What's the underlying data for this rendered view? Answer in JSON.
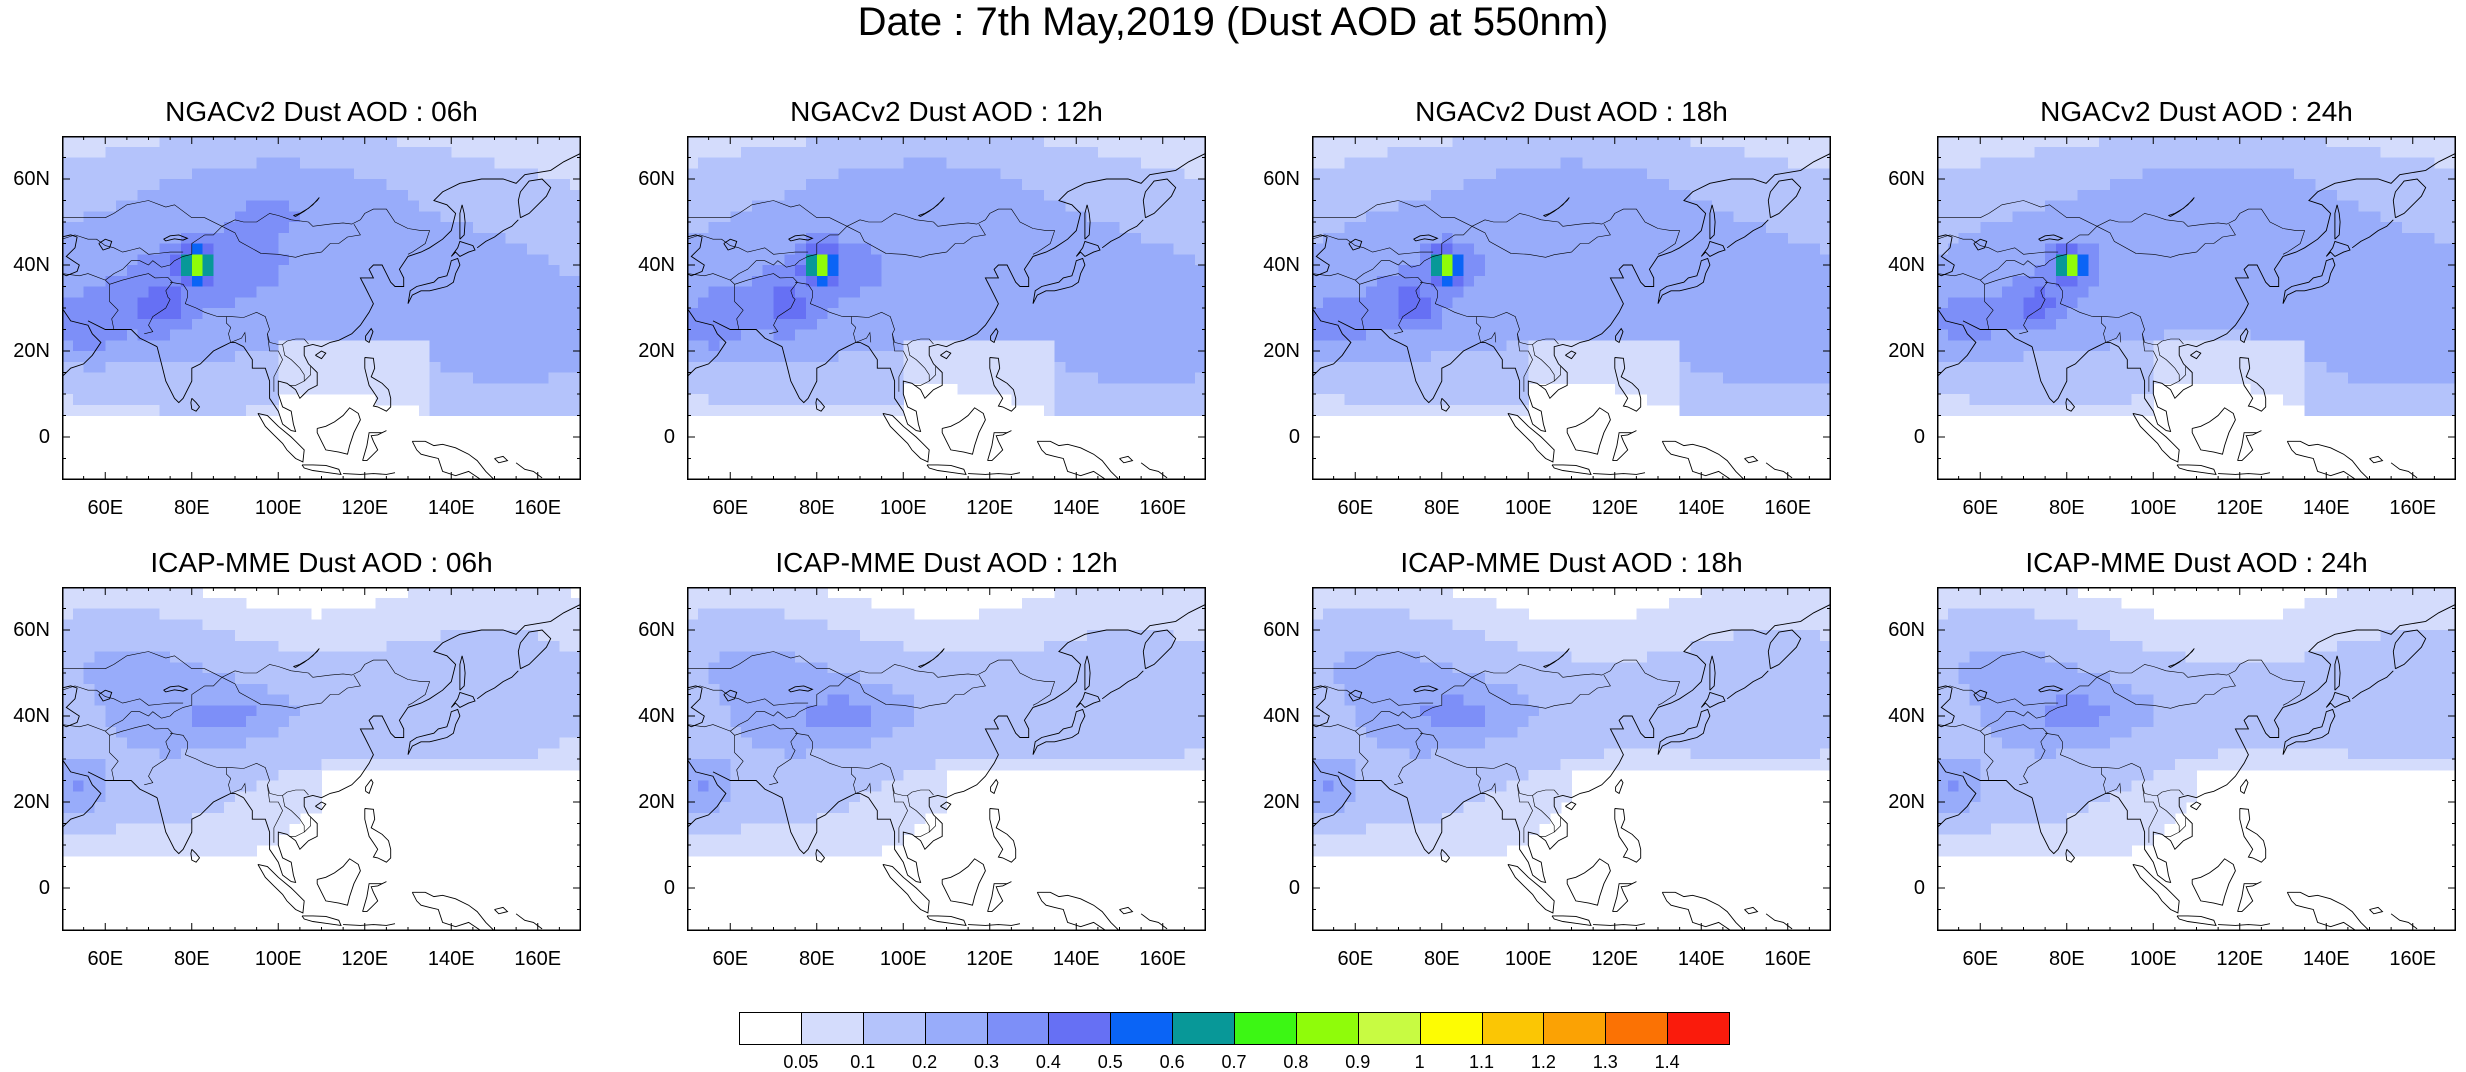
{
  "title": "Date : 7th May,2019 (Dust AOD at 550nm)",
  "panels": [
    {
      "title": "NGACv2 Dust AOD : 06h",
      "model": "ngac",
      "hour": 6
    },
    {
      "title": "NGACv2 Dust AOD : 12h",
      "model": "ngac",
      "hour": 12
    },
    {
      "title": "NGACv2 Dust AOD : 18h",
      "model": "ngac",
      "hour": 18
    },
    {
      "title": "NGACv2 Dust AOD : 24h",
      "model": "ngac",
      "hour": 24
    },
    {
      "title": "ICAP-MME Dust AOD : 06h",
      "model": "icap",
      "hour": 6
    },
    {
      "title": "ICAP-MME Dust AOD : 12h",
      "model": "icap",
      "hour": 12
    },
    {
      "title": "ICAP-MME Dust AOD : 18h",
      "model": "icap",
      "hour": 18
    },
    {
      "title": "ICAP-MME Dust AOD : 24h",
      "model": "icap",
      "hour": 24
    }
  ],
  "map": {
    "lon_range": [
      50,
      170
    ],
    "lat_range": [
      -10,
      70
    ],
    "lon_ticks": [
      "60E",
      "80E",
      "100E",
      "120E",
      "140E",
      "160E"
    ],
    "lat_ticks": [
      "60N",
      "40N",
      "20N",
      "0"
    ],
    "background": "#ffffff",
    "coastline_color": "#000000"
  },
  "colorbar": {
    "levels": [
      "0.05",
      "0.1",
      "0.2",
      "0.3",
      "0.4",
      "0.5",
      "0.6",
      "0.7",
      "0.8",
      "0.9",
      "1",
      "1.1",
      "1.2",
      "1.3",
      "1.4"
    ],
    "colors": [
      "#ffffff",
      "#d4dcfc",
      "#b4c3fb",
      "#98acfa",
      "#7d8ff8",
      "#6670f4",
      "#0a64f6",
      "#089898",
      "#3cf714",
      "#8ffc0a",
      "#c8fb42",
      "#fdfc03",
      "#fbc604",
      "#fba204",
      "#fb7204",
      "#fa1b0c"
    ]
  }
}
